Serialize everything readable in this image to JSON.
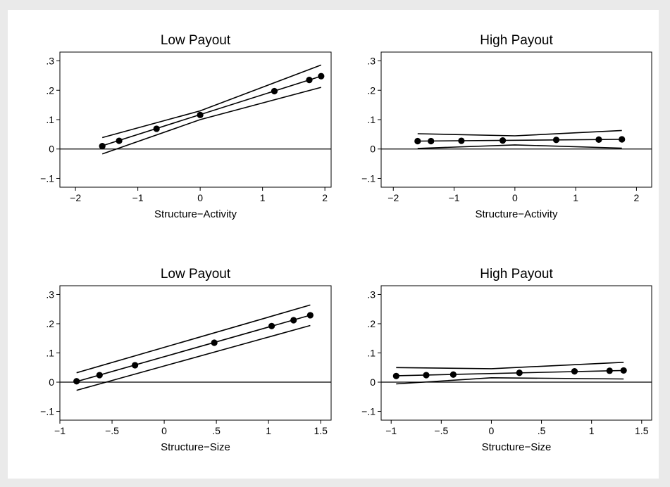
{
  "chart_data": [
    {
      "type": "line",
      "title": "Low Payout",
      "xlabel": "Structure−Activity",
      "ylabel": "",
      "xlim": [
        -2.25,
        2.1
      ],
      "ylim": [
        -0.13,
        0.33
      ],
      "xticks": [
        -2,
        -1,
        0,
        1,
        2
      ],
      "xtick_labels": [
        "−2",
        "−1",
        "0",
        "1",
        "2"
      ],
      "yticks": [
        -0.1,
        0,
        0.1,
        0.2,
        0.3
      ],
      "ytick_labels": [
        "−.1",
        "0",
        ".1",
        ".2",
        ".3"
      ],
      "zero_line": true,
      "grid": false,
      "series": [
        {
          "role": "points",
          "x": [
            -1.57,
            -1.3,
            -0.7,
            0.0,
            1.19,
            1.75,
            1.94
          ],
          "y": [
            0.01,
            0.028,
            0.069,
            0.116,
            0.197,
            0.235,
            0.248
          ]
        },
        {
          "role": "fit",
          "x": [
            -1.57,
            1.94
          ],
          "y": [
            0.011,
            0.248
          ]
        },
        {
          "role": "upper",
          "x": [
            -1.57,
            0,
            1.94
          ],
          "y": [
            0.039,
            0.13,
            0.286
          ]
        },
        {
          "role": "lower",
          "x": [
            -1.57,
            0,
            1.94
          ],
          "y": [
            -0.017,
            0.1,
            0.21
          ]
        }
      ]
    },
    {
      "type": "line",
      "title": "High Payout",
      "xlabel": "Structure−Activity",
      "ylabel": "",
      "xlim": [
        -2.2,
        2.25
      ],
      "ylim": [
        -0.13,
        0.33
      ],
      "xticks": [
        -2,
        -1,
        0,
        1,
        2
      ],
      "xtick_labels": [
        "−2",
        "−1",
        "0",
        "1",
        "2"
      ],
      "yticks": [
        -0.1,
        0,
        0.1,
        0.2,
        0.3
      ],
      "ytick_labels": [
        "−.1",
        "0",
        ".1",
        ".2",
        ".3"
      ],
      "zero_line": true,
      "grid": false,
      "series": [
        {
          "role": "points",
          "x": [
            -1.6,
            -1.38,
            -0.88,
            -0.2,
            0.68,
            1.38,
            1.76
          ],
          "y": [
            0.027,
            0.027,
            0.028,
            0.029,
            0.031,
            0.032,
            0.033
          ]
        },
        {
          "role": "fit",
          "x": [
            -1.6,
            1.76
          ],
          "y": [
            0.027,
            0.033
          ]
        },
        {
          "role": "upper",
          "x": [
            -1.6,
            0,
            1.76
          ],
          "y": [
            0.052,
            0.045,
            0.063
          ]
        },
        {
          "role": "lower",
          "x": [
            -1.6,
            0,
            1.76
          ],
          "y": [
            0.002,
            0.014,
            0.003
          ]
        }
      ]
    },
    {
      "type": "line",
      "title": "Low Payout",
      "xlabel": "Structure−Size",
      "ylabel": "",
      "xlim": [
        -1.0,
        1.6
      ],
      "ylim": [
        -0.13,
        0.33
      ],
      "xticks": [
        -1,
        -0.5,
        0,
        0.5,
        1,
        1.5
      ],
      "xtick_labels": [
        "−1",
        "−.5",
        "0",
        ".5",
        "1",
        "1.5"
      ],
      "yticks": [
        -0.1,
        0,
        0.1,
        0.2,
        0.3
      ],
      "ytick_labels": [
        "−.1",
        "0",
        ".1",
        ".2",
        ".3"
      ],
      "zero_line": true,
      "grid": false,
      "series": [
        {
          "role": "points",
          "x": [
            -0.84,
            -0.62,
            -0.28,
            0.48,
            1.03,
            1.24,
            1.4
          ],
          "y": [
            0.003,
            0.024,
            0.058,
            0.135,
            0.192,
            0.212,
            0.229
          ]
        },
        {
          "role": "fit",
          "x": [
            -0.84,
            1.4
          ],
          "y": [
            0.002,
            0.229
          ]
        },
        {
          "role": "upper",
          "x": [
            -0.84,
            1.4
          ],
          "y": [
            0.032,
            0.264
          ]
        },
        {
          "role": "lower",
          "x": [
            -0.84,
            1.4
          ],
          "y": [
            -0.028,
            0.194
          ]
        }
      ]
    },
    {
      "type": "line",
      "title": "High Payout",
      "xlabel": "Structure−Size",
      "ylabel": "",
      "xlim": [
        -1.1,
        1.6
      ],
      "ylim": [
        -0.13,
        0.33
      ],
      "xticks": [
        -1,
        -0.5,
        0,
        0.5,
        1,
        1.5
      ],
      "xtick_labels": [
        "−1",
        "−.5",
        "0",
        ".5",
        "1",
        "1.5"
      ],
      "yticks": [
        -0.1,
        0,
        0.1,
        0.2,
        0.3
      ],
      "ytick_labels": [
        "−.1",
        "0",
        ".1",
        ".2",
        ".3"
      ],
      "zero_line": true,
      "grid": false,
      "series": [
        {
          "role": "points",
          "x": [
            -0.95,
            -0.65,
            -0.38,
            0.28,
            0.83,
            1.18,
            1.32
          ],
          "y": [
            0.021,
            0.024,
            0.026,
            0.032,
            0.037,
            0.039,
            0.04
          ]
        },
        {
          "role": "fit",
          "x": [
            -0.95,
            1.32
          ],
          "y": [
            0.022,
            0.04
          ]
        },
        {
          "role": "upper",
          "x": [
            -0.95,
            0,
            1.32
          ],
          "y": [
            0.05,
            0.046,
            0.068
          ]
        },
        {
          "role": "lower",
          "x": [
            -0.95,
            0,
            1.32
          ],
          "y": [
            -0.006,
            0.015,
            0.011
          ]
        }
      ]
    }
  ]
}
